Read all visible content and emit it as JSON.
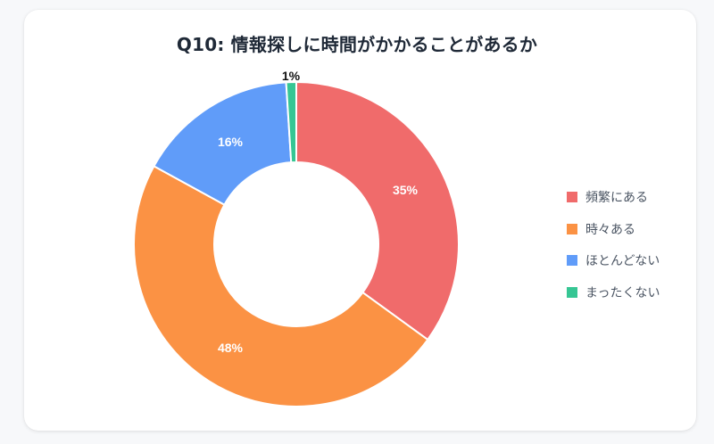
{
  "title": "Q10: 情報探しに時間がかかることがあるか",
  "legend": [
    {
      "label": "頻繁にある",
      "color": "#f06b6b"
    },
    {
      "label": "時々ある",
      "color": "#fb9244"
    },
    {
      "label": "ほとんどない",
      "color": "#609cf9"
    },
    {
      "label": "まったくない",
      "color": "#36c694"
    }
  ],
  "labels": {
    "s0": "35%",
    "s1": "48%",
    "s2": "16%",
    "s3": "1%"
  },
  "chart_data": {
    "type": "pie",
    "variant": "doughnut",
    "title": "Q10: 情報探しに時間がかかることがあるか",
    "categories": [
      "頻繁にある",
      "時々ある",
      "ほとんどない",
      "まったくない"
    ],
    "values": [
      35,
      48,
      16,
      1
    ],
    "unit": "%",
    "colors": [
      "#f06b6b",
      "#fb9244",
      "#609cf9",
      "#36c694"
    ],
    "legend_position": "right",
    "data_labels": [
      "35%",
      "48%",
      "16%",
      "1%"
    ]
  }
}
